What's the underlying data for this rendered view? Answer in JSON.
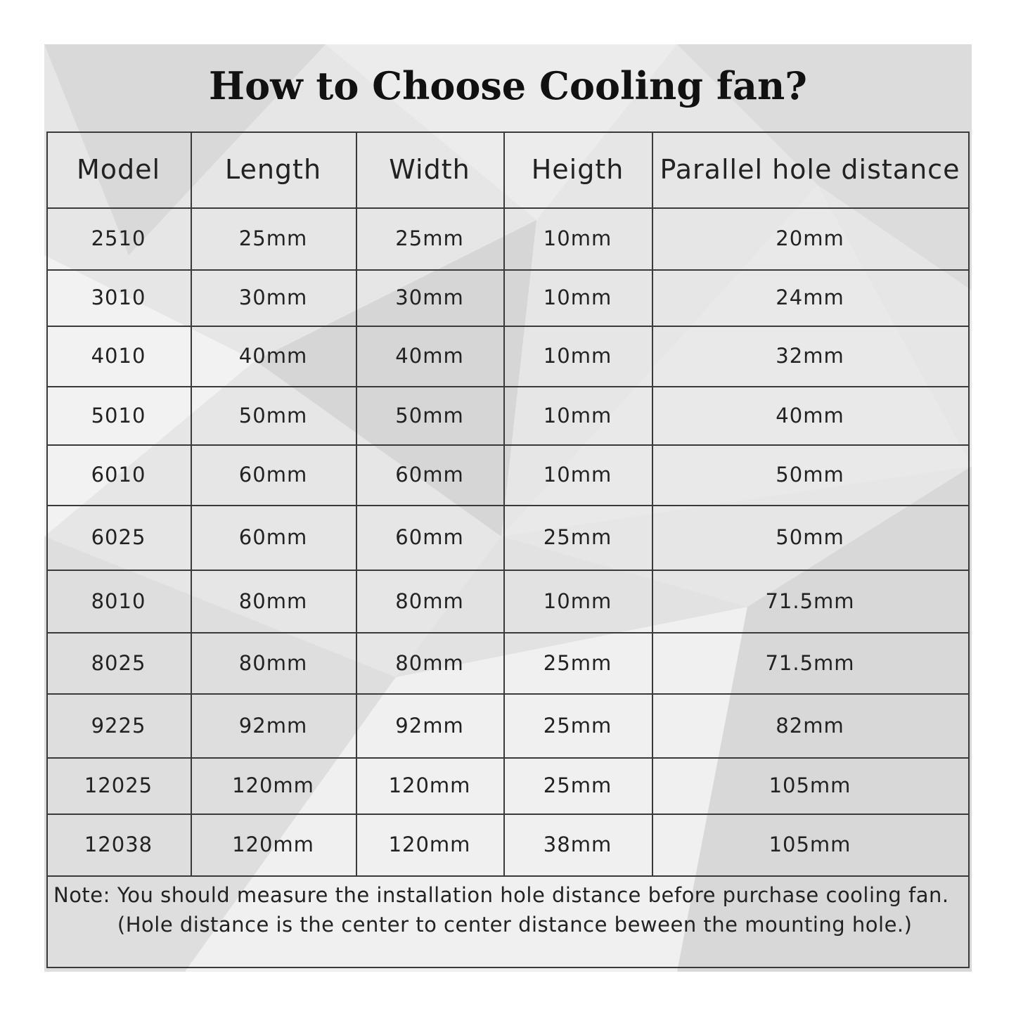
{
  "header": {
    "title": "How to Choose Cooling fan?"
  },
  "table": {
    "columns": [
      "Model",
      "Length",
      "Width",
      "Heigth",
      "Parallel hole distance"
    ],
    "rows": [
      [
        "2510",
        "25mm",
        "25mm",
        "10mm",
        "20mm"
      ],
      [
        "3010",
        "30mm",
        "30mm",
        "10mm",
        "24mm"
      ],
      [
        "4010",
        "40mm",
        "40mm",
        "10mm",
        "32mm"
      ],
      [
        "5010",
        "50mm",
        "50mm",
        "10mm",
        "40mm"
      ],
      [
        "6010",
        "60mm",
        "60mm",
        "10mm",
        "50mm"
      ],
      [
        "6025",
        "60mm",
        "60mm",
        "25mm",
        "50mm"
      ],
      [
        "8010",
        "80mm",
        "80mm",
        "10mm",
        "71.5mm"
      ],
      [
        "8025",
        "80mm",
        "80mm",
        "25mm",
        "71.5mm"
      ],
      [
        "9225",
        "92mm",
        "92mm",
        "25mm",
        "82mm"
      ],
      [
        "12025",
        "120mm",
        "120mm",
        "25mm",
        "105mm"
      ],
      [
        "12038",
        "120mm",
        "120mm",
        "38mm",
        "105mm"
      ]
    ]
  },
  "note": {
    "label": "Note:",
    "text": "You should measure the installation hole distance before purchase cooling fan.(Hole distance is the center to center distance beween the mounting hole.)"
  }
}
